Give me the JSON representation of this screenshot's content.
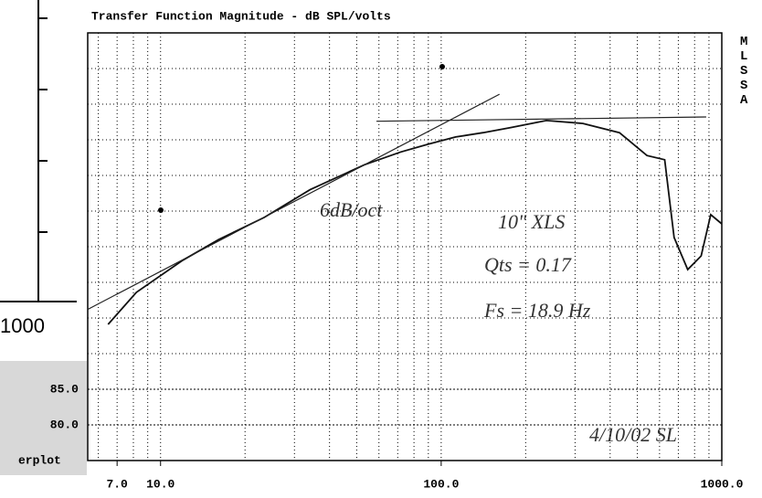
{
  "chart_data": {
    "type": "line",
    "title": "Transfer Function Magnitude - dB SPL/volts",
    "side_label": "MLSSA",
    "log_x": true,
    "grid": true,
    "xlim": [
      5.5,
      1000
    ],
    "xticks": [
      {
        "value": 7,
        "label": "7.0"
      },
      {
        "value": 10,
        "label": "10.0"
      },
      {
        "value": 100,
        "label": "100.0"
      },
      {
        "value": 1000,
        "label": "1000.0"
      }
    ],
    "ylim": [
      75,
      135
    ],
    "yticks": [
      {
        "value": 80,
        "label": "80.0"
      },
      {
        "value": 85,
        "label": "85.0"
      }
    ],
    "series": [
      {
        "color": "#111111",
        "x": [
          6.5,
          8.2,
          12.0,
          16.1,
          23.4,
          34.1,
          53.3,
          71.8,
          90,
          112.6,
          141,
          176,
          237,
          320,
          432,
          541,
          626,
          676,
          756,
          844,
          913,
          1000
        ],
        "values": [
          94.1,
          98.6,
          103.1,
          106.0,
          109.1,
          113.0,
          116.5,
          118.3,
          119.4,
          120.4,
          121.0,
          121.7,
          122.7,
          122.3,
          121.0,
          117.8,
          117.2,
          106.3,
          101.8,
          103.7,
          109.5,
          108.2
        ]
      },
      {
        "color": "#222222",
        "x": [
          5.5,
          161.4
        ],
        "values": [
          96.2,
          126.4
        ]
      },
      {
        "color": "#222222",
        "x": [
          58.8,
          880
        ],
        "values": [
          122.6,
          123.2
        ]
      }
    ],
    "annotations": [
      "6dB/oct",
      "10\" XLS",
      "Qts = 0.17",
      "Fs = 18.9 Hz",
      "4/10/02 SL"
    ],
    "background_fragments": [
      "1000",
      "erplot"
    ]
  }
}
